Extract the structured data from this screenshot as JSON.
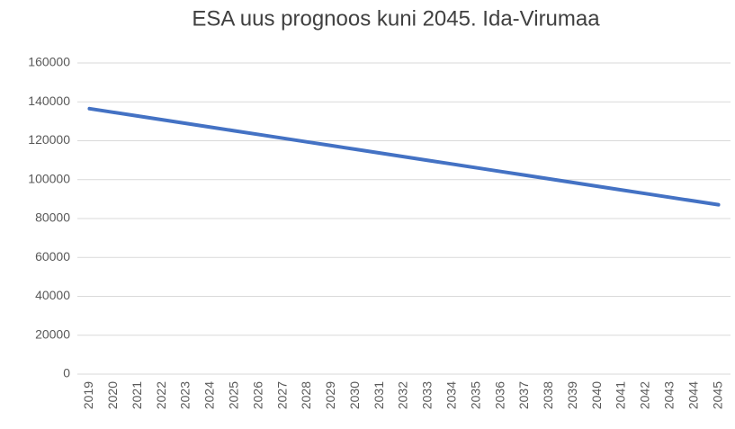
{
  "chart_data": {
    "type": "line",
    "title": "ESA uus prognoos kuni 2045. Ida-Virumaa",
    "categories": [
      "2019",
      "2020",
      "2021",
      "2022",
      "2023",
      "2024",
      "2025",
      "2026",
      "2027",
      "2028",
      "2029",
      "2030",
      "2031",
      "2032",
      "2033",
      "2034",
      "2035",
      "2036",
      "2037",
      "2038",
      "2039",
      "2040",
      "2041",
      "2042",
      "2043",
      "2044",
      "2045"
    ],
    "series": [
      {
        "color": "#4472c4",
        "values": [
          136500,
          134600,
          132700,
          130800,
          128900,
          127000,
          125100,
          123200,
          121300,
          119400,
          117500,
          115600,
          113700,
          111800,
          109900,
          108000,
          106100,
          104200,
          102300,
          100400,
          98500,
          96600,
          94700,
          92800,
          90900,
          89000,
          87100
        ]
      }
    ],
    "ylim": [
      0,
      160000
    ],
    "yticks": [
      0,
      20000,
      40000,
      60000,
      80000,
      100000,
      120000,
      140000,
      160000
    ],
    "grid": true
  }
}
